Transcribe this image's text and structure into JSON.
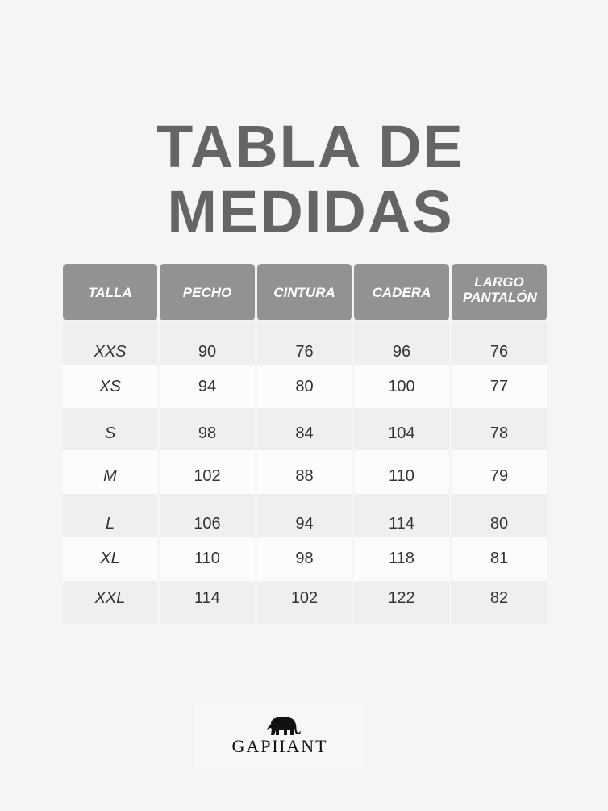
{
  "title": {
    "line1": "TABLA DE",
    "line2": "MEDIDAS"
  },
  "table": {
    "headers": [
      "TALLA",
      "PECHO",
      "CINTURA",
      "CADERA",
      "LARGO PANTALÓN"
    ],
    "rows": [
      [
        "XXS",
        "90",
        "76",
        "96",
        "76"
      ],
      [
        "XS",
        "94",
        "80",
        "100",
        "77"
      ],
      [
        "S",
        "98",
        "84",
        "104",
        "78"
      ],
      [
        "M",
        "102",
        "88",
        "110",
        "79"
      ],
      [
        "L",
        "106",
        "94",
        "114",
        "80"
      ],
      [
        "XL",
        "110",
        "98",
        "118",
        "81"
      ],
      [
        "XXL",
        "114",
        "102",
        "122",
        "82"
      ]
    ]
  },
  "logo": {
    "text": "GAPHANT",
    "icon": "elephant-icon"
  }
}
